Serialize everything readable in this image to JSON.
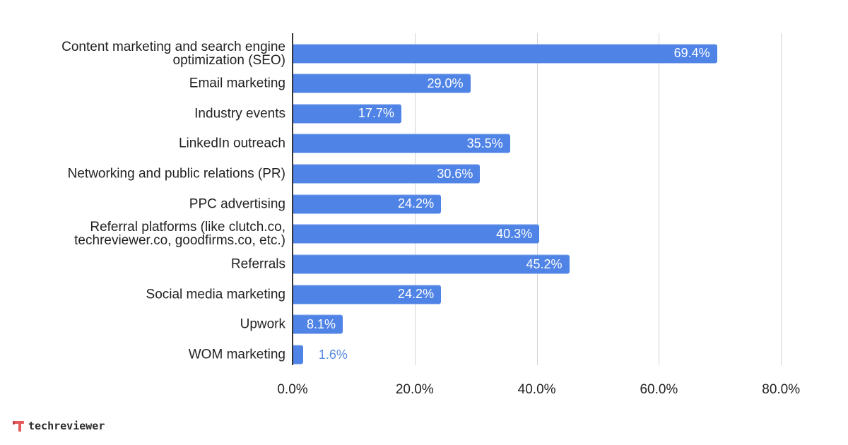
{
  "chart_data": {
    "type": "bar",
    "orientation": "horizontal",
    "title": "",
    "xlabel": "",
    "ylabel": "",
    "xlim": [
      0,
      80
    ],
    "grid": true,
    "legend": null,
    "value_format": "percent_1dp",
    "categories": [
      "Content marketing and search engine\noptimization (SEO)",
      "Email marketing",
      "Industry events",
      "LinkedIn outreach",
      "Networking and public relations (PR)",
      "PPC advertising",
      "Referral platforms (like clutch.co,\ntechreviewer.co, goodfirms.co, etc.)",
      "Referrals",
      "Social media marketing",
      "Upwork",
      "WOM marketing"
    ],
    "values": [
      69.4,
      29.0,
      17.7,
      35.5,
      30.6,
      24.2,
      40.3,
      45.2,
      24.2,
      8.1,
      1.6
    ],
    "value_labels": [
      "69.4%",
      "29.0%",
      "17.7%",
      "35.5%",
      "30.6%",
      "24.2%",
      "40.3%",
      "45.2%",
      "24.2%",
      "8.1%",
      "1.6%"
    ],
    "x_ticks": [
      0,
      20,
      40,
      60,
      80
    ],
    "x_tick_labels": [
      "0.0%",
      "20.0%",
      "40.0%",
      "60.0%",
      "80.0%"
    ],
    "colors": {
      "bar": "#4f83e6",
      "inside_label": "#ffffff",
      "outside_label": "#5a8be3",
      "grid": "#d4d4d4",
      "axis": "#333333"
    }
  },
  "brand": {
    "name": "techreviewer",
    "logo_color": "#e45a5a"
  }
}
